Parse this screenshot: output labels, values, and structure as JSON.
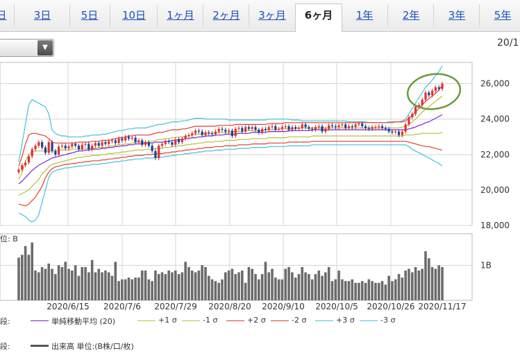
{
  "tabs": [
    {
      "label": "日"
    },
    {
      "label": "3日"
    },
    {
      "label": "5日"
    },
    {
      "label": "10日"
    },
    {
      "label": "1ヶ月"
    },
    {
      "label": "2ヶ月"
    },
    {
      "label": "3ヶ月"
    },
    {
      "label": "6ヶ月",
      "active": true
    },
    {
      "label": "1年"
    },
    {
      "label": "2年"
    },
    {
      "label": "3年"
    },
    {
      "label": "5年"
    }
  ],
  "date_range_text": "20/1",
  "volume_label": "位: B",
  "chart_data": {
    "type": "candlestick",
    "x_tick_labels": [
      "2020/6/15",
      "2020/7/6",
      "2020/7/29",
      "2020/8/20",
      "2020/9/10",
      "2020/10/5",
      "2020/10/26",
      "2020/11/17"
    ],
    "y_ticks": [
      18000,
      20000,
      22000,
      24000,
      26000
    ],
    "y_tick_labels": [
      "18,000",
      "20,000",
      "22,000",
      "24,000",
      "26,000"
    ],
    "ylim": [
      18000,
      27200
    ],
    "volume_ylim": [
      0,
      1.9
    ],
    "volume_tick_label": "1B",
    "grid": true,
    "legend_upper": [
      {
        "label": "単純移動平均 (20)",
        "color": "#7a1fd6"
      },
      {
        "label": "+1 σ",
        "color": "#b5c23a"
      },
      {
        "label": "-1 σ",
        "color": "#b5c23a"
      },
      {
        "label": "+2 σ",
        "color": "#e0402a"
      },
      {
        "label": "-2 σ",
        "color": "#e0402a"
      },
      {
        "label": "+3 σ",
        "color": "#45c0d8"
      },
      {
        "label": "-3 σ",
        "color": "#45c0d8"
      }
    ],
    "legend_upper_prefix": "段:",
    "legend_lower": [
      {
        "label": "出来高 単位:(B株/口/枚)",
        "color": "#555555"
      }
    ],
    "legend_lower_prefix": "段:",
    "close": [
      21150,
      21400,
      21550,
      21900,
      22300,
      22500,
      22700,
      22400,
      22100,
      22700,
      22200,
      22000,
      22450,
      22500,
      22350,
      22450,
      22600,
      22500,
      22300,
      22550,
      22600,
      22300,
      22500,
      22650,
      22500,
      22700,
      22600,
      22750,
      22800,
      22650,
      22900,
      22800,
      23000,
      22900,
      22950,
      22700,
      22800,
      22550,
      22700,
      22500,
      22200,
      21800,
      22500,
      22600,
      22750,
      22700,
      22550,
      22850,
      22700,
      22900,
      23050,
      23100,
      23200,
      23350,
      23300,
      23100,
      23250,
      23200,
      23150,
      23300,
      23450,
      23400,
      23300,
      23350,
      23050,
      23450,
      23500,
      23300,
      23550,
      23450,
      23550,
      23400,
      23250,
      23450,
      23400,
      23550,
      23600,
      23400,
      23450,
      23550,
      23600,
      23400,
      23550,
      23450,
      23500,
      23700,
      23550,
      23450,
      23400,
      23550,
      23600,
      23300,
      23450,
      23650,
      23600,
      23550,
      23650,
      23700,
      23500,
      23600,
      23550,
      23700,
      23750,
      23600,
      23500,
      23450,
      23550,
      23550,
      23600,
      23500,
      23450,
      23300,
      23250,
      23300,
      23100,
      23300,
      23700,
      24100,
      24300,
      24700,
      24800,
      25100,
      25500,
      25350,
      25600,
      25800,
      25700,
      26000
    ],
    "upper3": [
      21600,
      22600,
      23700,
      24800,
      25100,
      25000,
      24900,
      24800,
      24700,
      24300,
      23400,
      23200,
      23100,
      23050,
      23050,
      23000,
      23000,
      23000,
      23000,
      23000,
      23050,
      23050,
      23100,
      23100,
      23100,
      23150,
      23150,
      23200,
      23250,
      23300,
      23350,
      23350,
      23400,
      23450,
      23450,
      23500,
      23500,
      23500,
      23500,
      23550,
      23600,
      23650,
      23700,
      23700,
      23750,
      23800,
      23850,
      23850,
      23850,
      23900,
      23900,
      23950,
      24000,
      24050,
      24050,
      24050,
      24000,
      24000,
      24000,
      24000,
      24000,
      24000,
      24000,
      23950,
      23950,
      23950,
      23950,
      23950,
      23950,
      23950,
      23950,
      23950,
      23950,
      23950,
      23950,
      24000,
      24000,
      24000,
      24000,
      24000,
      24000,
      24000,
      23950,
      23950,
      23950,
      23900,
      23900,
      23900,
      23900,
      23900,
      23900,
      23900,
      23900,
      23900,
      23900,
      23900,
      23900,
      23900,
      23900,
      23850,
      23850,
      23850,
      23850,
      23850,
      23850,
      23800,
      23800,
      23800,
      23800,
      23800,
      23800,
      23850,
      23850,
      23850,
      23850,
      23900,
      24000,
      24300,
      24600,
      24900,
      25200,
      25500,
      25800,
      26000,
      26200,
      26450,
      26700,
      27000
    ],
    "upper2": [
      21350,
      21900,
      22600,
      23100,
      23200,
      23200,
      23150,
      23100,
      23050,
      22900,
      22700,
      22650,
      22650,
      22650,
      22650,
      22650,
      22650,
      22650,
      22700,
      22700,
      22700,
      22700,
      22750,
      22750,
      22750,
      22800,
      22800,
      22800,
      22850,
      22900,
      22950,
      22950,
      23000,
      23050,
      23050,
      23100,
      23100,
      23100,
      23100,
      23100,
      23150,
      23200,
      23250,
      23250,
      23300,
      23350,
      23400,
      23400,
      23400,
      23450,
      23450,
      23500,
      23550,
      23600,
      23600,
      23600,
      23600,
      23600,
      23600,
      23600,
      23650,
      23650,
      23650,
      23650,
      23650,
      23700,
      23700,
      23700,
      23700,
      23700,
      23700,
      23700,
      23700,
      23700,
      23700,
      23750,
      23750,
      23750,
      23750,
      23750,
      23800,
      23800,
      23800,
      23800,
      23800,
      23800,
      23800,
      23800,
      23800,
      23800,
      23800,
      23800,
      23800,
      23800,
      23800,
      23800,
      23800,
      23800,
      23800,
      23800,
      23800,
      23800,
      23800,
      23800,
      23800,
      23800,
      23800,
      23800,
      23800,
      23800,
      23800,
      23800,
      23800,
      23850,
      23850,
      23850,
      23900,
      24050,
      24200,
      24400,
      24600,
      24800,
      25000,
      25150,
      25300,
      25450,
      25650,
      25900
    ],
    "upper1": [
      20600,
      21000,
      21600,
      22000,
      22150,
      22200,
      22200,
      22200,
      22200,
      22200,
      22200,
      22200,
      22250,
      22250,
      22250,
      22250,
      22300,
      22300,
      22300,
      22300,
      22350,
      22350,
      22350,
      22350,
      22400,
      22400,
      22400,
      22450,
      22500,
      22500,
      22550,
      22550,
      22600,
      22600,
      22650,
      22700,
      22700,
      22700,
      22700,
      22700,
      22750,
      22800,
      22850,
      22850,
      22900,
      22900,
      22950,
      22950,
      23000,
      23000,
      23050,
      23050,
      23100,
      23150,
      23150,
      23150,
      23200,
      23200,
      23200,
      23200,
      23250,
      23250,
      23250,
      23250,
      23300,
      23300,
      23300,
      23300,
      23350,
      23350,
      23350,
      23350,
      23350,
      23350,
      23400,
      23400,
      23400,
      23400,
      23450,
      23450,
      23450,
      23450,
      23450,
      23500,
      23500,
      23500,
      23500,
      23500,
      23500,
      23500,
      23500,
      23500,
      23500,
      23500,
      23500,
      23500,
      23500,
      23500,
      23500,
      23500,
      23500,
      23500,
      23500,
      23500,
      23500,
      23500,
      23500,
      23500,
      23500,
      23500,
      23500,
      23500,
      23500,
      23500,
      23500,
      23550,
      23600,
      23700,
      23850,
      24000,
      24200,
      24400,
      24550,
      24700,
      24850,
      25000,
      25150,
      25300
    ],
    "sma": [
      20350,
      20500,
      20700,
      20900,
      21100,
      21250,
      21400,
      21500,
      21600,
      21700,
      21800,
      21850,
      21900,
      21950,
      22000,
      22050,
      22100,
      22150,
      22200,
      22200,
      22250,
      22250,
      22300,
      22300,
      22300,
      22350,
      22350,
      22400,
      22400,
      22450,
      22450,
      22500,
      22500,
      22550,
      22550,
      22600,
      22600,
      22600,
      22650,
      22650,
      22650,
      22700,
      22700,
      22700,
      22750,
      22750,
      22800,
      22800,
      22850,
      22850,
      22900,
      22900,
      22950,
      22950,
      23000,
      23000,
      23050,
      23050,
      23050,
      23100,
      23100,
      23100,
      23150,
      23150,
      23150,
      23150,
      23200,
      23200,
      23200,
      23200,
      23250,
      23250,
      23250,
      23250,
      23250,
      23300,
      23300,
      23300,
      23300,
      23300,
      23300,
      23350,
      23350,
      23350,
      23350,
      23350,
      23350,
      23350,
      23400,
      23400,
      23400,
      23400,
      23400,
      23400,
      23400,
      23400,
      23400,
      23400,
      23400,
      23400,
      23400,
      23400,
      23400,
      23400,
      23400,
      23400,
      23400,
      23400,
      23400,
      23400,
      23400,
      23400,
      23400,
      23400,
      23400,
      23400,
      23400,
      23450,
      23500,
      23550,
      23650,
      23700,
      23800,
      23850,
      23950,
      24050,
      24150,
      24250
    ],
    "lower1": [
      19700,
      19800,
      19900,
      20000,
      20200,
      20400,
      20600,
      20900,
      21100,
      21300,
      21450,
      21500,
      21550,
      21600,
      21650,
      21700,
      21750,
      21800,
      21850,
      21850,
      21900,
      21900,
      21950,
      21950,
      21950,
      22000,
      22000,
      22050,
      22050,
      22100,
      22100,
      22150,
      22150,
      22200,
      22200,
      22250,
      22250,
      22250,
      22300,
      22300,
      22300,
      22350,
      22350,
      22350,
      22400,
      22400,
      22450,
      22450,
      22500,
      22500,
      22550,
      22550,
      22600,
      22600,
      22650,
      22650,
      22700,
      22700,
      22700,
      22750,
      22750,
      22750,
      22800,
      22800,
      22800,
      22800,
      22850,
      22850,
      22850,
      22850,
      22900,
      22900,
      22900,
      22900,
      22900,
      22950,
      22950,
      22950,
      22950,
      22950,
      22950,
      23000,
      23000,
      23000,
      23000,
      23000,
      23000,
      23000,
      23050,
      23050,
      23050,
      23050,
      23050,
      23050,
      23050,
      23050,
      23050,
      23050,
      23050,
      23050,
      23050,
      23050,
      23050,
      23050,
      23050,
      23050,
      23050,
      23050,
      23050,
      23050,
      23050,
      23050,
      23050,
      23050,
      23050,
      23050,
      23100,
      23100,
      23100,
      23150,
      23150,
      23200,
      23200,
      23200,
      23200,
      23200,
      23200,
      23250
    ],
    "lower2": [
      19200,
      19150,
      19100,
      19200,
      19400,
      19600,
      19900,
      20200,
      20700,
      21000,
      21200,
      21300,
      21350,
      21400,
      21450,
      21450,
      21500,
      21500,
      21550,
      21550,
      21600,
      21600,
      21650,
      21650,
      21650,
      21700,
      21700,
      21750,
      21750,
      21800,
      21800,
      21850,
      21850,
      21900,
      21900,
      21950,
      21950,
      21950,
      22000,
      22000,
      22000,
      22050,
      22050,
      22050,
      22100,
      22100,
      22150,
      22150,
      22200,
      22200,
      22250,
      22250,
      22300,
      22300,
      22350,
      22350,
      22400,
      22400,
      22400,
      22450,
      22450,
      22450,
      22500,
      22500,
      22500,
      22500,
      22550,
      22550,
      22550,
      22550,
      22600,
      22600,
      22600,
      22600,
      22600,
      22650,
      22650,
      22650,
      22650,
      22650,
      22650,
      22700,
      22700,
      22700,
      22700,
      22700,
      22700,
      22700,
      22750,
      22750,
      22750,
      22750,
      22750,
      22750,
      22750,
      22750,
      22750,
      22750,
      22750,
      22750,
      22750,
      22750,
      22750,
      22750,
      22750,
      22750,
      22750,
      22750,
      22750,
      22750,
      22750,
      22750,
      22750,
      22750,
      22750,
      22750,
      22750,
      22700,
      22650,
      22600,
      22550,
      22500,
      22450,
      22450,
      22400,
      22350,
      22300,
      22250
    ],
    "lower3": [
      18700,
      18600,
      18500,
      18300,
      18200,
      18300,
      18600,
      19300,
      20000,
      20700,
      21000,
      21100,
      21150,
      21200,
      21250,
      21250,
      21300,
      21300,
      21350,
      21350,
      21400,
      21400,
      21450,
      21450,
      21450,
      21500,
      21500,
      21550,
      21550,
      21600,
      21600,
      21650,
      21650,
      21700,
      21700,
      21750,
      21750,
      21750,
      21800,
      21800,
      21800,
      21850,
      21850,
      21850,
      21900,
      21900,
      21950,
      21950,
      22000,
      22000,
      22050,
      22050,
      22100,
      22100,
      22150,
      22150,
      22200,
      22200,
      22200,
      22250,
      22250,
      22250,
      22300,
      22300,
      22300,
      22300,
      22350,
      22350,
      22350,
      22350,
      22400,
      22400,
      22400,
      22400,
      22400,
      22450,
      22450,
      22450,
      22450,
      22450,
      22450,
      22500,
      22500,
      22500,
      22500,
      22500,
      22500,
      22500,
      22550,
      22550,
      22550,
      22550,
      22550,
      22550,
      22550,
      22550,
      22550,
      22550,
      22550,
      22550,
      22550,
      22550,
      22550,
      22550,
      22550,
      22550,
      22550,
      22550,
      22550,
      22550,
      22550,
      22550,
      22550,
      22550,
      22550,
      22550,
      22550,
      22450,
      22300,
      22200,
      22100,
      22000,
      21900,
      21800,
      21700,
      21600,
      21500,
      21350
    ],
    "volume": [
      1.22,
      1.3,
      1.55,
      1.3,
      1.65,
      0.85,
      0.8,
      0.95,
      0.9,
      1.05,
      0.9,
      0.75,
      1.0,
      0.95,
      1.1,
      0.9,
      0.85,
      1.0,
      0.7,
      0.95,
      0.95,
      0.8,
      1.15,
      0.8,
      0.9,
      0.8,
      0.85,
      0.8,
      0.7,
      1.1,
      0.55,
      0.6,
      0.6,
      0.65,
      0.6,
      0.65,
      0.65,
      0.85,
      0.85,
      0.6,
      0.55,
      0.85,
      0.75,
      0.8,
      0.75,
      0.85,
      0.8,
      0.85,
      0.75,
      0.8,
      1.1,
      0.95,
      0.85,
      0.8,
      0.85,
      1.0,
      0.95,
      0.7,
      0.6,
      0.55,
      0.5,
      0.6,
      0.8,
      0.85,
      0.9,
      0.75,
      0.8,
      0.85,
      0.5,
      0.95,
      0.9,
      0.75,
      0.6,
      0.75,
      1.1,
      0.8,
      0.9,
      0.65,
      0.6,
      0.6,
      0.9,
      0.95,
      0.8,
      0.65,
      0.75,
      0.95,
      0.8,
      0.75,
      0.6,
      0.75,
      0.85,
      0.7,
      0.8,
      0.95,
      0.55,
      0.6,
      0.85,
      0.6,
      0.55,
      0.55,
      0.6,
      0.5,
      0.5,
      0.55,
      0.5,
      0.6,
      0.55,
      0.5,
      0.5,
      0.55,
      0.45,
      0.7,
      0.55,
      0.6,
      0.75,
      0.65,
      0.85,
      0.9,
      0.8,
      0.95,
      0.85,
      0.9,
      1.4,
      1.2,
      0.95,
      0.9,
      1.0,
      0.95
    ]
  }
}
